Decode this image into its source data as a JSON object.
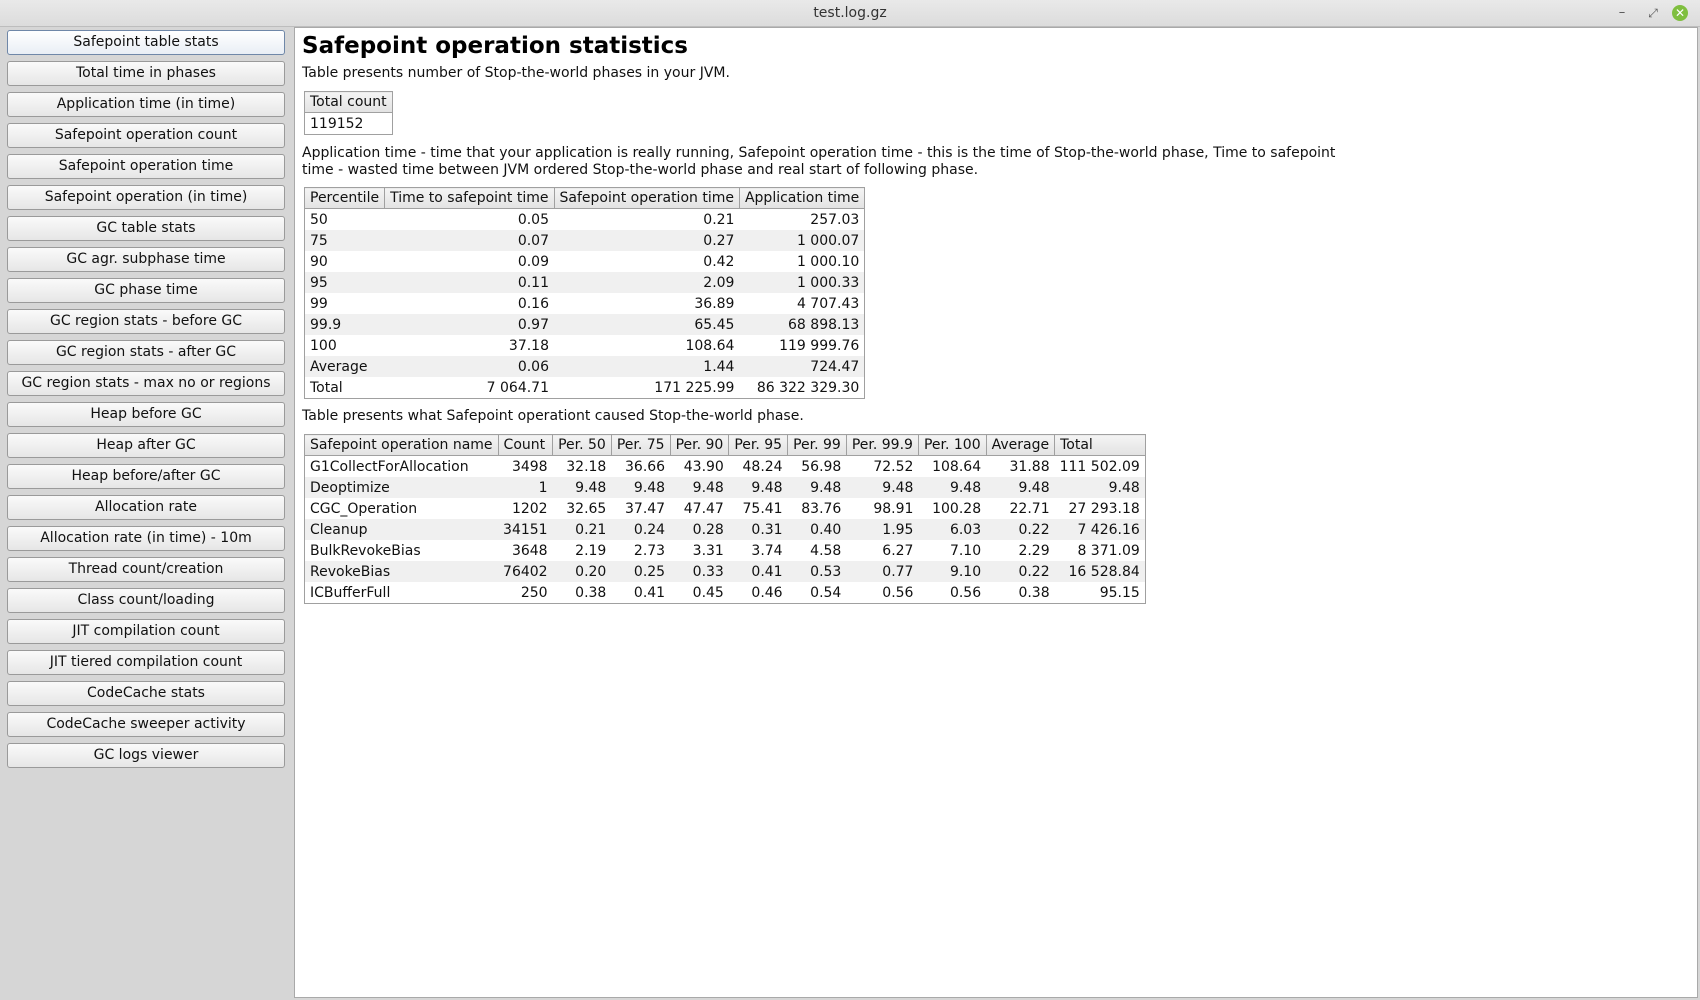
{
  "window": {
    "title": "test.log.gz",
    "minimize_icon": "minimize-icon",
    "maximize_icon": "maximize-icon",
    "close_icon": "close-icon"
  },
  "sidebar": {
    "items": [
      {
        "label": "Safepoint table stats",
        "active": true
      },
      {
        "label": "Total time in phases"
      },
      {
        "label": "Application time (in time)"
      },
      {
        "label": "Safepoint operation count"
      },
      {
        "label": "Safepoint operation time"
      },
      {
        "label": "Safepoint operation (in time)"
      },
      {
        "label": "GC table stats"
      },
      {
        "label": "GC agr. subphase time"
      },
      {
        "label": "GC phase time"
      },
      {
        "label": "GC region stats - before GC"
      },
      {
        "label": "GC region stats - after GC"
      },
      {
        "label": "GC region stats - max no or regions"
      },
      {
        "label": "Heap before GC"
      },
      {
        "label": "Heap after GC"
      },
      {
        "label": "Heap before/after GC"
      },
      {
        "label": "Allocation rate"
      },
      {
        "label": "Allocation rate (in time) - 10m"
      },
      {
        "label": "Thread count/creation"
      },
      {
        "label": "Class count/loading"
      },
      {
        "label": "JIT compilation count"
      },
      {
        "label": "JIT tiered compilation count"
      },
      {
        "label": "CodeCache stats"
      },
      {
        "label": "CodeCache sweeper activity"
      },
      {
        "label": "GC logs viewer"
      }
    ]
  },
  "main": {
    "heading": "Safepoint operation statistics",
    "intro": "Table presents number of Stop-the-world phases in your JVM.",
    "total_table": {
      "header": "Total count",
      "value": "119152"
    },
    "description": "Application time - time that your application is really running, Safepoint operation time - this is the time of Stop-the-world phase, Time to safepoint time - wasted time between JVM ordered Stop-the-world phase and real start of following phase.",
    "percentile_table": {
      "headers": [
        "Percentile",
        "Time to safepoint time",
        "Safepoint operation time",
        "Application time"
      ],
      "rows": [
        [
          "50",
          "0.05",
          "0.21",
          "257.03"
        ],
        [
          "75",
          "0.07",
          "0.27",
          "1 000.07"
        ],
        [
          "90",
          "0.09",
          "0.42",
          "1 000.10"
        ],
        [
          "95",
          "0.11",
          "2.09",
          "1 000.33"
        ],
        [
          "99",
          "0.16",
          "36.89",
          "4 707.43"
        ],
        [
          "99.9",
          "0.97",
          "65.45",
          "68 898.13"
        ],
        [
          "100",
          "37.18",
          "108.64",
          "119 999.76"
        ],
        [
          "Average",
          "0.06",
          "1.44",
          "724.47"
        ],
        [
          "Total",
          "7 064.71",
          "171 225.99",
          "86 322 329.30"
        ]
      ]
    },
    "ops_intro": "Table presents what Safepoint operationt caused Stop-the-world phase.",
    "ops_table": {
      "headers": [
        "Safepoint operation name",
        "Count",
        "Per. 50",
        "Per. 75",
        "Per. 90",
        "Per. 95",
        "Per. 99",
        "Per. 99.9",
        "Per. 100",
        "Average",
        "Total"
      ],
      "rows": [
        [
          "G1CollectForAllocation",
          "3498",
          "32.18",
          "36.66",
          "43.90",
          "48.24",
          "56.98",
          "72.52",
          "108.64",
          "31.88",
          "111 502.09"
        ],
        [
          "Deoptimize",
          "1",
          "9.48",
          "9.48",
          "9.48",
          "9.48",
          "9.48",
          "9.48",
          "9.48",
          "9.48",
          "9.48"
        ],
        [
          "CGC_Operation",
          "1202",
          "32.65",
          "37.47",
          "47.47",
          "75.41",
          "83.76",
          "98.91",
          "100.28",
          "22.71",
          "27 293.18"
        ],
        [
          "Cleanup",
          "34151",
          "0.21",
          "0.24",
          "0.28",
          "0.31",
          "0.40",
          "1.95",
          "6.03",
          "0.22",
          "7 426.16"
        ],
        [
          "BulkRevokeBias",
          "3648",
          "2.19",
          "2.73",
          "3.31",
          "3.74",
          "4.58",
          "6.27",
          "7.10",
          "2.29",
          "8 371.09"
        ],
        [
          "RevokeBias",
          "76402",
          "0.20",
          "0.25",
          "0.33",
          "0.41",
          "0.53",
          "0.77",
          "9.10",
          "0.22",
          "16 528.84"
        ],
        [
          "ICBufferFull",
          "250",
          "0.38",
          "0.41",
          "0.45",
          "0.46",
          "0.54",
          "0.56",
          "0.56",
          "0.38",
          "95.15"
        ]
      ]
    }
  }
}
